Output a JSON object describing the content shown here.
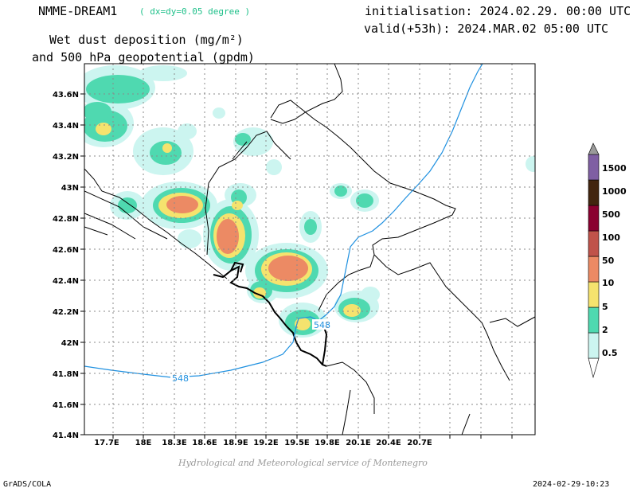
{
  "header": {
    "model": "NMME-DREAM1",
    "resolution": "( dx=dy=0.05 degree )",
    "variable_line1": "Wet dust deposition (mg/m²)",
    "variable_line2": "and 500 hPa geopotential (gpdm)",
    "initialisation": "initialisation: 2024.02.29. 00:00 UTC",
    "valid": "valid(+53h): 2024.MAR.02 05:00 UTC"
  },
  "footer": {
    "credit": "Hydrological and Meteorological service of Montenegro",
    "software": "GrADS/COLA",
    "timestamp": "2024-02-29-10:23"
  },
  "map": {
    "lon_labels": [
      "17.7E",
      "18E",
      "18.3E",
      "18.6E",
      "18.9E",
      "19.2E",
      "19.5E",
      "19.8E",
      "20.1E",
      "20.4E",
      "20.7E"
    ],
    "lat_labels": [
      "43.6N",
      "43.4N",
      "43.2N",
      "43N",
      "42.8N",
      "42.6N",
      "42.4N",
      "42.2N",
      "42N",
      "41.8N",
      "41.6N",
      "41.4N"
    ],
    "contour_labels": [
      "548",
      "548"
    ],
    "colors": {
      "coast": "#000000",
      "contour": "#1e90e0",
      "grid": "#8a8a8a"
    }
  },
  "colorbar": {
    "labels": [
      "0.5",
      "2",
      "5",
      "10",
      "50",
      "100",
      "500",
      "1000",
      "1500"
    ],
    "colors": [
      "#ccf5f0",
      "#4fd9b0",
      "#f5e36e",
      "#ec8a64",
      "#c0534a",
      "#8a0030",
      "#42250f",
      "#7f5fa3",
      "#9a9a9a"
    ]
  }
}
